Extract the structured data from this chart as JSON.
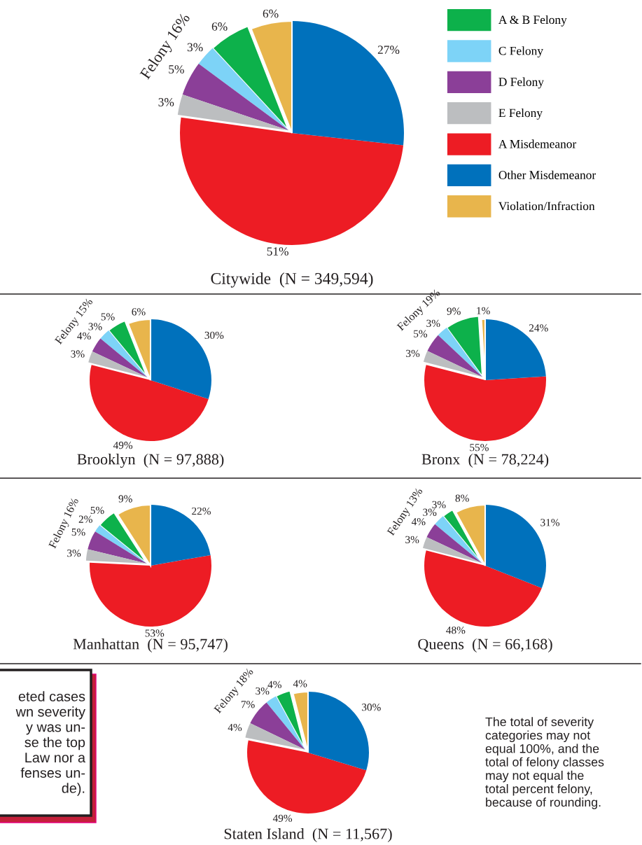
{
  "chart_data": [
    {
      "type": "pie",
      "title": "Citywide  (N = 349,594)",
      "categories": [
        "A & B Felony",
        "C Felony",
        "D Felony",
        "E Felony",
        "A Misdemeanor",
        "Other Misdemeanor",
        "Violation/Infraction"
      ],
      "values": [
        6,
        3,
        5,
        3,
        51,
        27,
        6
      ],
      "value_labels": [
        "6%",
        "3%",
        "5%",
        "3%",
        "51%",
        "27%",
        "6%"
      ],
      "colors": [
        "#0db14b",
        "#7dd3f7",
        "#8b3f98",
        "#bcbec0",
        "#ed1c24",
        "#0071bc",
        "#e8b54c"
      ],
      "legend": "right",
      "annotations": [
        "Felony 16%"
      ]
    },
    {
      "type": "pie",
      "title": "Brooklyn  (N = 97,888)",
      "categories": [
        null,
        null,
        null,
        null,
        null,
        null,
        null
      ],
      "values": [
        5,
        3,
        4,
        3,
        49,
        30,
        6
      ],
      "value_labels": [
        "5%",
        "3%",
        "4%",
        "3%",
        "49%",
        "30%",
        "6%"
      ],
      "colors": [
        "#0db14b",
        "#7dd3f7",
        "#8b3f98",
        "#bcbec0",
        "#ed1c24",
        "#0071bc",
        "#e8b54c"
      ],
      "annotations": [
        "Felony 15%"
      ]
    },
    {
      "type": "pie",
      "title": "Bronx  (N = 78,224)",
      "categories": [
        null,
        null,
        null,
        null,
        null,
        null,
        null
      ],
      "values": [
        9,
        3,
        5,
        3,
        55,
        24,
        1
      ],
      "value_labels": [
        "9%",
        "3%",
        "5%",
        "3%",
        "55%",
        "24%",
        "1%"
      ],
      "colors": [
        "#0db14b",
        "#7dd3f7",
        "#8b3f98",
        "#bcbec0",
        "#ed1c24",
        "#0071bc",
        "#e8b54c"
      ],
      "annotations": [
        "Felony 19%"
      ]
    },
    {
      "type": "pie",
      "title": "Manhattan  (N = 95,747)",
      "categories": [
        null,
        null,
        null,
        null,
        null,
        null,
        null
      ],
      "values": [
        5,
        2,
        5,
        3,
        53,
        22,
        9
      ],
      "value_labels": [
        "5%",
        "2%",
        "5%",
        "3%",
        "53%",
        "22%",
        "9%"
      ],
      "colors": [
        "#0db14b",
        "#7dd3f7",
        "#8b3f98",
        "#bcbec0",
        "#ed1c24",
        "#0071bc",
        "#e8b54c"
      ],
      "annotations": [
        "Felony 16%"
      ]
    },
    {
      "type": "pie",
      "title": "Queens  (N = 66,168)",
      "categories": [
        null,
        null,
        null,
        null,
        null,
        null,
        null
      ],
      "values": [
        3,
        3,
        4,
        3,
        48,
        31,
        8
      ],
      "value_labels": [
        "3%",
        "3%",
        "4%",
        "3%",
        "48%",
        "31%",
        "8%"
      ],
      "colors": [
        "#0db14b",
        "#7dd3f7",
        "#8b3f98",
        "#bcbec0",
        "#ed1c24",
        "#0071bc",
        "#e8b54c"
      ],
      "annotations": [
        "Felony 13%"
      ]
    },
    {
      "type": "pie",
      "title": "Staten Island  (N = 11,567)",
      "categories": [
        null,
        null,
        null,
        null,
        null,
        null,
        null
      ],
      "values": [
        4,
        3,
        7,
        4,
        49,
        30,
        4
      ],
      "value_labels": [
        "4%",
        "3%",
        "7%",
        "4%",
        "49%",
        "30%",
        "4%"
      ],
      "colors": [
        "#0db14b",
        "#7dd3f7",
        "#8b3f98",
        "#bcbec0",
        "#ed1c24",
        "#0071bc",
        "#e8b54c"
      ],
      "annotations": [
        "Felony 18%",
        "eted cases\nwn severity\ny was un-\nse the top\nLaw nor a\nfenses un-\nde).",
        "The total of severity\ncategories may not\nequal 100%, and the\ntotal of felony classes\nmay not equal the\ntotal percent felony,\nbecause of rounding."
      ]
    }
  ]
}
